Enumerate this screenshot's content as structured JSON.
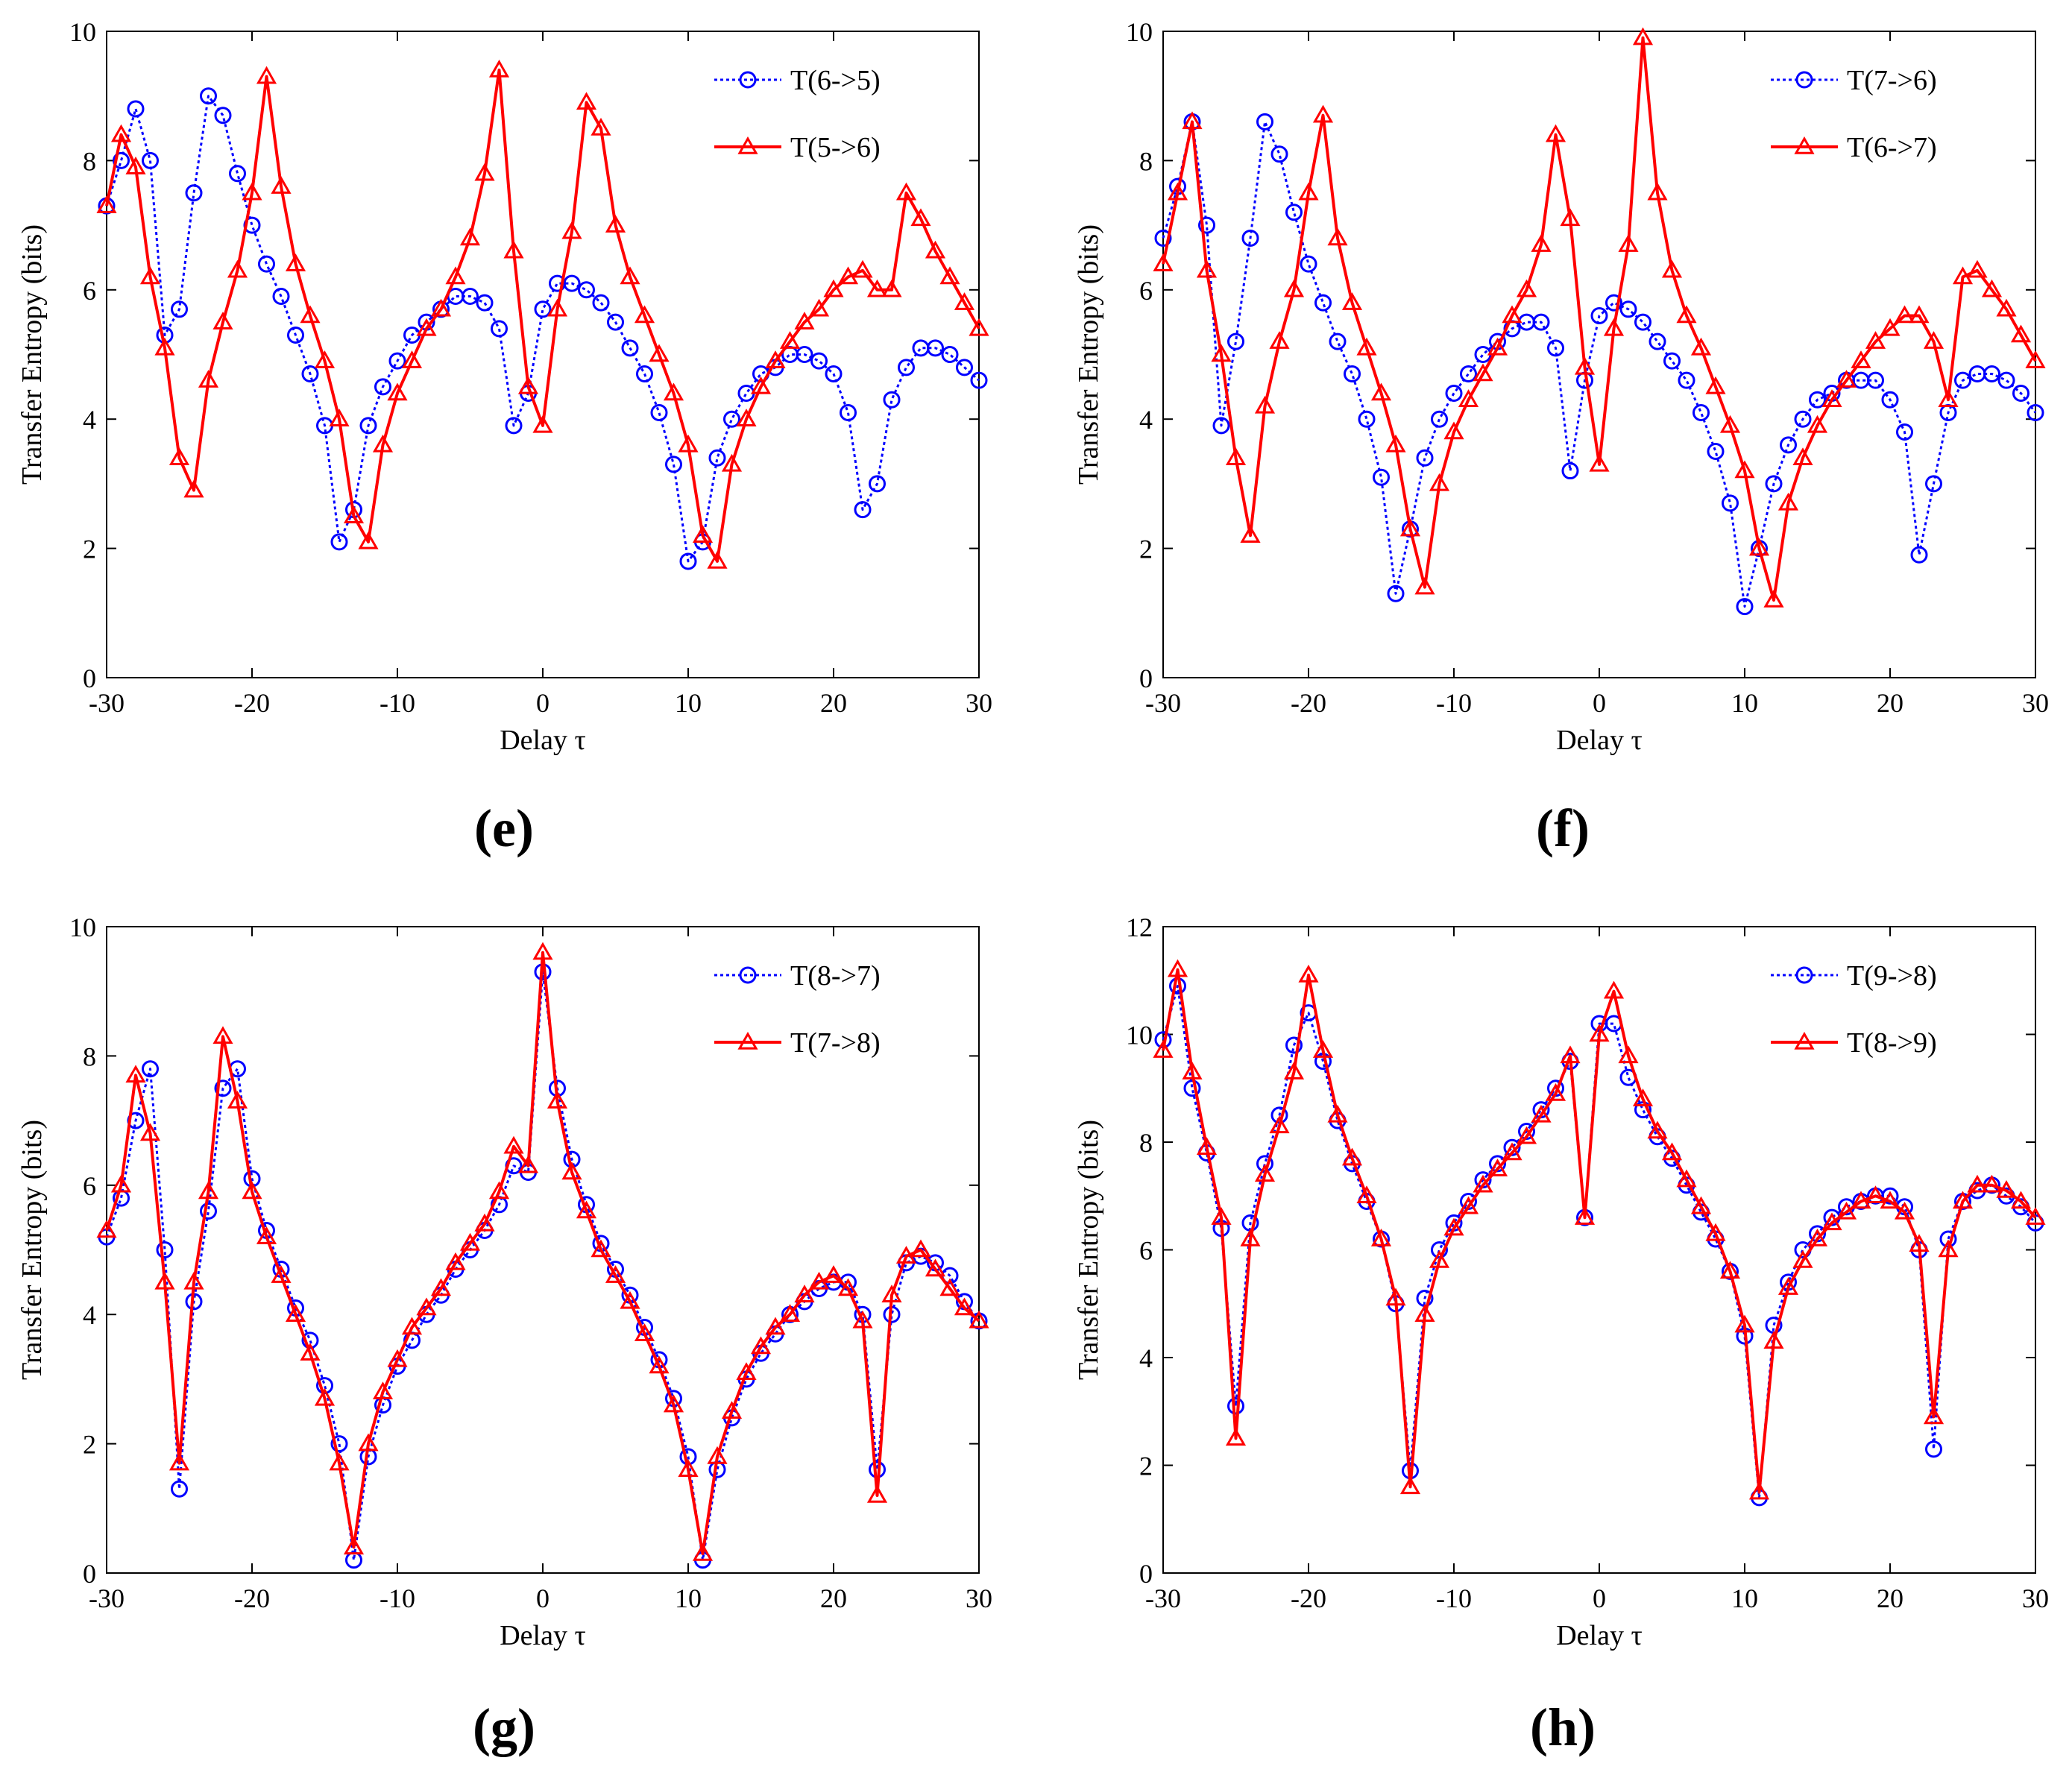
{
  "chart_data": [
    {
      "type": "line",
      "panel_label": "(e)",
      "xlabel": "Delay τ",
      "ylabel": "Transfer Entropy (bits)",
      "xlim": [
        -30,
        30
      ],
      "ylim": [
        0,
        10
      ],
      "xticks": [
        "-30",
        "-20",
        "-10",
        "0",
        "10",
        "20",
        "30"
      ],
      "yticks": [
        "0",
        "2",
        "4",
        "6",
        "8",
        "10"
      ],
      "legend_position": "top-right",
      "x": [
        -30,
        -29,
        -28,
        -27,
        -26,
        -25,
        -24,
        -23,
        -22,
        -21,
        -20,
        -19,
        -18,
        -17,
        -16,
        -15,
        -14,
        -13,
        -12,
        -11,
        -10,
        -9,
        -8,
        -7,
        -6,
        -5,
        -4,
        -3,
        -2,
        -1,
        0,
        1,
        2,
        3,
        4,
        5,
        6,
        7,
        8,
        9,
        10,
        11,
        12,
        13,
        14,
        15,
        16,
        17,
        18,
        19,
        20,
        21,
        22,
        23,
        24,
        25,
        26,
        27,
        28,
        29,
        30
      ],
      "series": [
        {
          "name": "T(6->5)",
          "color": "#0000ff",
          "marker": "circle",
          "dash": "dotted",
          "values": [
            7.3,
            8.0,
            8.8,
            8.0,
            5.3,
            5.7,
            7.5,
            9.0,
            8.7,
            7.8,
            7.0,
            6.4,
            5.9,
            5.3,
            4.7,
            3.9,
            2.1,
            2.6,
            3.9,
            4.5,
            4.9,
            5.3,
            5.5,
            5.7,
            5.9,
            5.9,
            5.8,
            5.4,
            3.9,
            4.4,
            5.7,
            6.1,
            6.1,
            6.0,
            5.8,
            5.5,
            5.1,
            4.7,
            4.1,
            3.3,
            1.8,
            2.1,
            3.4,
            4.0,
            4.4,
            4.7,
            4.8,
            5.0,
            5.0,
            4.9,
            4.7,
            4.1,
            2.6,
            3.0,
            4.3,
            4.8,
            5.1,
            5.1,
            5.0,
            4.8,
            4.6
          ]
        },
        {
          "name": "T(5->6)",
          "color": "#ff0000",
          "marker": "triangle",
          "dash": "solid",
          "values": [
            7.3,
            8.4,
            7.9,
            6.2,
            5.1,
            3.4,
            2.9,
            4.6,
            5.5,
            6.3,
            7.5,
            9.3,
            7.6,
            6.4,
            5.6,
            4.9,
            4.0,
            2.5,
            2.1,
            3.6,
            4.4,
            4.9,
            5.4,
            5.7,
            6.2,
            6.8,
            7.8,
            9.4,
            6.6,
            4.5,
            3.9,
            5.7,
            6.9,
            8.9,
            8.5,
            7.0,
            6.2,
            5.6,
            5.0,
            4.4,
            3.6,
            2.2,
            1.8,
            3.3,
            4.0,
            4.5,
            4.9,
            5.2,
            5.5,
            5.7,
            6.0,
            6.2,
            6.3,
            6.0,
            6.0,
            7.5,
            7.1,
            6.6,
            6.2,
            5.8,
            5.4
          ]
        }
      ]
    },
    {
      "type": "line",
      "panel_label": "(f)",
      "xlabel": "Delay τ",
      "ylabel": "Transfer Entropy (bits)",
      "xlim": [
        -30,
        30
      ],
      "ylim": [
        0,
        10
      ],
      "xticks": [
        "-30",
        "-20",
        "-10",
        "0",
        "10",
        "20",
        "30"
      ],
      "yticks": [
        "0",
        "2",
        "4",
        "6",
        "8",
        "10"
      ],
      "legend_position": "top-right",
      "x": [
        -30,
        -29,
        -28,
        -27,
        -26,
        -25,
        -24,
        -23,
        -22,
        -21,
        -20,
        -19,
        -18,
        -17,
        -16,
        -15,
        -14,
        -13,
        -12,
        -11,
        -10,
        -9,
        -8,
        -7,
        -6,
        -5,
        -4,
        -3,
        -2,
        -1,
        0,
        1,
        2,
        3,
        4,
        5,
        6,
        7,
        8,
        9,
        10,
        11,
        12,
        13,
        14,
        15,
        16,
        17,
        18,
        19,
        20,
        21,
        22,
        23,
        24,
        25,
        26,
        27,
        28,
        29,
        30
      ],
      "series": [
        {
          "name": "T(7->6)",
          "color": "#0000ff",
          "marker": "circle",
          "dash": "dotted",
          "values": [
            6.8,
            7.6,
            8.6,
            7.0,
            3.9,
            5.2,
            6.8,
            8.6,
            8.1,
            7.2,
            6.4,
            5.8,
            5.2,
            4.7,
            4.0,
            3.1,
            1.3,
            2.3,
            3.4,
            4.0,
            4.4,
            4.7,
            5.0,
            5.2,
            5.4,
            5.5,
            5.5,
            5.1,
            3.2,
            4.6,
            5.6,
            5.8,
            5.7,
            5.5,
            5.2,
            4.9,
            4.6,
            4.1,
            3.5,
            2.7,
            1.1,
            2.0,
            3.0,
            3.6,
            4.0,
            4.3,
            4.4,
            4.6,
            4.6,
            4.6,
            4.3,
            3.8,
            1.9,
            3.0,
            4.1,
            4.6,
            4.7,
            4.7,
            4.6,
            4.4,
            4.1
          ]
        },
        {
          "name": "T(6->7)",
          "color": "#ff0000",
          "marker": "triangle",
          "dash": "solid",
          "values": [
            6.4,
            7.5,
            8.6,
            6.3,
            5.0,
            3.4,
            2.2,
            4.2,
            5.2,
            6.0,
            7.5,
            8.7,
            6.8,
            5.8,
            5.1,
            4.4,
            3.6,
            2.3,
            1.4,
            3.0,
            3.8,
            4.3,
            4.7,
            5.1,
            5.6,
            6.0,
            6.7,
            8.4,
            7.1,
            4.8,
            3.3,
            5.4,
            6.7,
            9.9,
            7.5,
            6.3,
            5.6,
            5.1,
            4.5,
            3.9,
            3.2,
            2.0,
            1.2,
            2.7,
            3.4,
            3.9,
            4.3,
            4.6,
            4.9,
            5.2,
            5.4,
            5.6,
            5.6,
            5.2,
            4.3,
            6.2,
            6.3,
            6.0,
            5.7,
            5.3,
            4.9
          ]
        }
      ]
    },
    {
      "type": "line",
      "panel_label": "(g)",
      "xlabel": "Delay τ",
      "ylabel": "Transfer Entropy (bits)",
      "xlim": [
        -30,
        30
      ],
      "ylim": [
        0,
        10
      ],
      "xticks": [
        "-30",
        "-20",
        "-10",
        "0",
        "10",
        "20",
        "30"
      ],
      "yticks": [
        "0",
        "2",
        "4",
        "6",
        "8",
        "10"
      ],
      "legend_position": "top-right",
      "x": [
        -30,
        -29,
        -28,
        -27,
        -26,
        -25,
        -24,
        -23,
        -22,
        -21,
        -20,
        -19,
        -18,
        -17,
        -16,
        -15,
        -14,
        -13,
        -12,
        -11,
        -10,
        -9,
        -8,
        -7,
        -6,
        -5,
        -4,
        -3,
        -2,
        -1,
        0,
        1,
        2,
        3,
        4,
        5,
        6,
        7,
        8,
        9,
        10,
        11,
        12,
        13,
        14,
        15,
        16,
        17,
        18,
        19,
        20,
        21,
        22,
        23,
        24,
        25,
        26,
        27,
        28,
        29,
        30
      ],
      "series": [
        {
          "name": "T(8->7)",
          "color": "#0000ff",
          "marker": "circle",
          "dash": "dotted",
          "values": [
            5.2,
            5.8,
            7.0,
            7.8,
            5.0,
            1.3,
            4.2,
            5.6,
            7.5,
            7.8,
            6.1,
            5.3,
            4.7,
            4.1,
            3.6,
            2.9,
            2.0,
            0.2,
            1.8,
            2.6,
            3.2,
            3.6,
            4.0,
            4.3,
            4.7,
            5.0,
            5.3,
            5.7,
            6.3,
            6.2,
            9.3,
            7.5,
            6.4,
            5.7,
            5.1,
            4.7,
            4.3,
            3.8,
            3.3,
            2.7,
            1.8,
            0.2,
            1.6,
            2.4,
            3.0,
            3.4,
            3.7,
            4.0,
            4.2,
            4.4,
            4.5,
            4.5,
            4.0,
            1.6,
            4.0,
            4.8,
            4.9,
            4.8,
            4.6,
            4.2,
            3.9
          ]
        },
        {
          "name": "T(7->8)",
          "color": "#ff0000",
          "marker": "triangle",
          "dash": "solid",
          "values": [
            5.3,
            6.0,
            7.7,
            6.8,
            4.5,
            1.7,
            4.5,
            5.9,
            8.3,
            7.3,
            5.9,
            5.2,
            4.6,
            4.0,
            3.4,
            2.7,
            1.7,
            0.4,
            2.0,
            2.8,
            3.3,
            3.8,
            4.1,
            4.4,
            4.8,
            5.1,
            5.4,
            5.9,
            6.6,
            6.3,
            9.6,
            7.3,
            6.2,
            5.6,
            5.0,
            4.6,
            4.2,
            3.7,
            3.2,
            2.6,
            1.6,
            0.3,
            1.8,
            2.5,
            3.1,
            3.5,
            3.8,
            4.0,
            4.3,
            4.5,
            4.6,
            4.4,
            3.9,
            1.2,
            4.3,
            4.9,
            5.0,
            4.7,
            4.4,
            4.1,
            3.9
          ]
        }
      ]
    },
    {
      "type": "line",
      "panel_label": "(h)",
      "xlabel": "Delay τ",
      "ylabel": "Transfer Entropy (bits)",
      "xlim": [
        -30,
        30
      ],
      "ylim": [
        0,
        12
      ],
      "xticks": [
        "-30",
        "-20",
        "-10",
        "0",
        "10",
        "20",
        "30"
      ],
      "yticks": [
        "0",
        "2",
        "4",
        "6",
        "8",
        "10",
        "12"
      ],
      "legend_position": "top-right",
      "x": [
        -30,
        -29,
        -28,
        -27,
        -26,
        -25,
        -24,
        -23,
        -22,
        -21,
        -20,
        -19,
        -18,
        -17,
        -16,
        -15,
        -14,
        -13,
        -12,
        -11,
        -10,
        -9,
        -8,
        -7,
        -6,
        -5,
        -4,
        -3,
        -2,
        -1,
        0,
        1,
        2,
        3,
        4,
        5,
        6,
        7,
        8,
        9,
        10,
        11,
        12,
        13,
        14,
        15,
        16,
        17,
        18,
        19,
        20,
        21,
        22,
        23,
        24,
        25,
        26,
        27,
        28,
        29,
        30
      ],
      "series": [
        {
          "name": "T(9->8)",
          "color": "#0000ff",
          "marker": "circle",
          "dash": "dotted",
          "values": [
            9.9,
            10.9,
            9.0,
            7.8,
            6.4,
            3.1,
            6.5,
            7.6,
            8.5,
            9.8,
            10.4,
            9.5,
            8.4,
            7.6,
            6.9,
            6.2,
            5.0,
            1.9,
            5.1,
            6.0,
            6.5,
            6.9,
            7.3,
            7.6,
            7.9,
            8.2,
            8.6,
            9.0,
            9.5,
            6.6,
            10.2,
            10.2,
            9.2,
            8.6,
            8.1,
            7.7,
            7.2,
            6.7,
            6.2,
            5.6,
            4.4,
            1.4,
            4.6,
            5.4,
            6.0,
            6.3,
            6.6,
            6.8,
            6.9,
            7.0,
            7.0,
            6.8,
            6.0,
            2.3,
            6.2,
            6.9,
            7.1,
            7.2,
            7.0,
            6.8,
            6.5
          ]
        },
        {
          "name": "T(8->9)",
          "color": "#ff0000",
          "marker": "triangle",
          "dash": "solid",
          "values": [
            9.7,
            11.2,
            9.3,
            7.9,
            6.6,
            2.5,
            6.2,
            7.4,
            8.3,
            9.3,
            11.1,
            9.7,
            8.5,
            7.7,
            7.0,
            6.2,
            5.1,
            1.6,
            4.8,
            5.8,
            6.4,
            6.8,
            7.2,
            7.5,
            7.8,
            8.1,
            8.5,
            8.9,
            9.6,
            6.6,
            10.0,
            10.8,
            9.6,
            8.8,
            8.2,
            7.8,
            7.3,
            6.8,
            6.3,
            5.6,
            4.6,
            1.5,
            4.3,
            5.3,
            5.8,
            6.2,
            6.5,
            6.7,
            6.9,
            7.0,
            6.9,
            6.7,
            6.1,
            2.9,
            6.0,
            6.9,
            7.2,
            7.2,
            7.1,
            6.9,
            6.6
          ]
        }
      ]
    }
  ]
}
